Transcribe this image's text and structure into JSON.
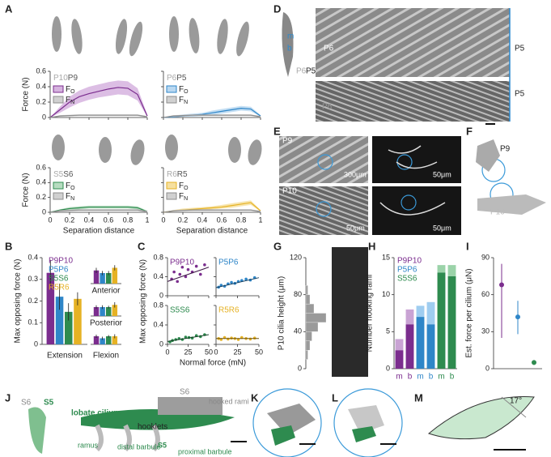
{
  "panel_labels": [
    "A",
    "B",
    "C",
    "D",
    "E",
    "F",
    "G",
    "H",
    "I",
    "J",
    "K",
    "L",
    "M"
  ],
  "figure_text": {
    "D": [
      "m",
      "b",
      "P6",
      "P5",
      "P6",
      "P5",
      "P5",
      "P6"
    ],
    "E": [
      "P9",
      "300μm",
      "50μm",
      "P10",
      "50μm",
      "50μm"
    ],
    "F": [
      "P9",
      "P10"
    ],
    "J": [
      "S6",
      "S5",
      "lobate cilium",
      "S6",
      "hooked rami",
      "hooklets",
      "ramus",
      "distal barbule",
      "S5",
      "proximal barbule"
    ],
    "M": [
      "17°"
    ]
  },
  "chart_data": [
    {
      "type": "line",
      "pair": [
        "P10",
        "P9"
      ],
      "ylabel": "Force (N)",
      "x": [
        0,
        0.1,
        0.2,
        0.3,
        0.4,
        0.5,
        0.6,
        0.7,
        0.8,
        0.9,
        1
      ],
      "series": [
        {
          "name": "F",
          "name_sub": "O",
          "color": "#7b2d8e",
          "band_color": "#d6b3df",
          "values": [
            0,
            0.1,
            0.2,
            0.27,
            0.31,
            0.34,
            0.37,
            0.39,
            0.38,
            0.3,
            0.02
          ],
          "lower": [
            0,
            0.06,
            0.13,
            0.19,
            0.23,
            0.26,
            0.28,
            0.3,
            0.29,
            0.22,
            0.01
          ],
          "upper": [
            0,
            0.14,
            0.27,
            0.35,
            0.4,
            0.43,
            0.46,
            0.48,
            0.47,
            0.38,
            0.04
          ]
        },
        {
          "name": "F",
          "name_sub": "N",
          "color": "#8c8c8c",
          "band_color": "#d0d0d0",
          "values": [
            0,
            0.02,
            0.025,
            0.03,
            0.03,
            0.03,
            0.03,
            0.03,
            0.03,
            0.03,
            0.01
          ],
          "lower": [
            0,
            0.01,
            0.015,
            0.02,
            0.02,
            0.02,
            0.02,
            0.02,
            0.02,
            0.02,
            0
          ],
          "upper": [
            0,
            0.03,
            0.035,
            0.04,
            0.04,
            0.04,
            0.04,
            0.04,
            0.04,
            0.04,
            0.02
          ]
        }
      ],
      "xlim": [
        0,
        1
      ],
      "xticks": [
        0,
        0.2,
        0.4,
        0.6,
        0.8,
        1
      ],
      "ylim": [
        0,
        0.6
      ],
      "yticks": [
        0,
        0.2,
        0.4,
        0.6
      ]
    },
    {
      "type": "line",
      "pair": [
        "P6",
        "P5"
      ],
      "x": [
        0,
        0.1,
        0.2,
        0.3,
        0.4,
        0.5,
        0.6,
        0.7,
        0.8,
        0.9,
        1
      ],
      "series": [
        {
          "name": "F",
          "name_sub": "O",
          "color": "#2f86c8",
          "band_color": "#b9d8f1",
          "values": [
            0,
            0.01,
            0.02,
            0.03,
            0.04,
            0.06,
            0.08,
            0.1,
            0.12,
            0.11,
            0.02
          ],
          "lower": [
            0,
            0,
            0.01,
            0.01,
            0.02,
            0.03,
            0.05,
            0.07,
            0.09,
            0.08,
            0.01
          ],
          "upper": [
            0,
            0.02,
            0.04,
            0.05,
            0.06,
            0.09,
            0.11,
            0.13,
            0.15,
            0.14,
            0.03
          ]
        },
        {
          "name": "F",
          "name_sub": "N",
          "color": "#8c8c8c",
          "band_color": "#d0d0d0",
          "values": [
            0,
            0.02,
            0.025,
            0.03,
            0.03,
            0.03,
            0.03,
            0.03,
            0.03,
            0.03,
            0.01
          ],
          "lower": [
            0,
            0.01,
            0.015,
            0.02,
            0.02,
            0.02,
            0.02,
            0.02,
            0.02,
            0.02,
            0
          ],
          "upper": [
            0,
            0.03,
            0.035,
            0.04,
            0.04,
            0.04,
            0.04,
            0.04,
            0.04,
            0.04,
            0.02
          ]
        }
      ],
      "xlim": [
        0,
        1
      ],
      "xticks": [
        0,
        0.2,
        0.4,
        0.6,
        0.8,
        1
      ],
      "ylim": [
        0,
        0.6
      ],
      "yticks": [
        0,
        0.2,
        0.4,
        0.6
      ]
    },
    {
      "type": "line",
      "pair": [
        "S5",
        "S6"
      ],
      "ylabel": "Force (N)",
      "xlabel": "Separation distance",
      "x": [
        0,
        0.1,
        0.2,
        0.3,
        0.4,
        0.5,
        0.6,
        0.7,
        0.8,
        0.9,
        1
      ],
      "series": [
        {
          "name": "F",
          "name_sub": "O",
          "color": "#2e8b4f",
          "band_color": "#b6dcc0",
          "values": [
            0,
            0.03,
            0.05,
            0.06,
            0.07,
            0.07,
            0.07,
            0.07,
            0.07,
            0.06,
            0.01
          ],
          "lower": [
            0,
            0.02,
            0.03,
            0.04,
            0.05,
            0.05,
            0.05,
            0.05,
            0.05,
            0.04,
            0
          ],
          "upper": [
            0,
            0.04,
            0.07,
            0.08,
            0.09,
            0.09,
            0.09,
            0.09,
            0.09,
            0.08,
            0.02
          ]
        },
        {
          "name": "F",
          "name_sub": "N",
          "color": "#8c8c8c",
          "band_color": "#d0d0d0",
          "values": [
            0,
            0.02,
            0.025,
            0.03,
            0.03,
            0.03,
            0.03,
            0.03,
            0.03,
            0.03,
            0.01
          ],
          "lower": [
            0,
            0.01,
            0.015,
            0.02,
            0.02,
            0.02,
            0.02,
            0.02,
            0.02,
            0.02,
            0
          ],
          "upper": [
            0,
            0.03,
            0.035,
            0.04,
            0.04,
            0.04,
            0.04,
            0.04,
            0.04,
            0.04,
            0.02
          ]
        }
      ],
      "xlim": [
        0,
        1
      ],
      "xticks": [
        0,
        0.2,
        0.4,
        0.6,
        0.8,
        1
      ],
      "ylim": [
        0,
        0.6
      ],
      "yticks": [
        0,
        0.2,
        0.4,
        0.6
      ]
    },
    {
      "type": "line",
      "pair": [
        "R6",
        "R5"
      ],
      "xlabel": "Separation distance",
      "x": [
        0,
        0.1,
        0.2,
        0.3,
        0.4,
        0.5,
        0.6,
        0.7,
        0.8,
        0.9,
        1
      ],
      "series": [
        {
          "name": "F",
          "name_sub": "O",
          "color": "#e6b224",
          "band_color": "#f6e0a0",
          "values": [
            0,
            0.02,
            0.03,
            0.04,
            0.05,
            0.06,
            0.07,
            0.09,
            0.11,
            0.13,
            0.02
          ],
          "lower": [
            0,
            0.01,
            0.02,
            0.02,
            0.03,
            0.04,
            0.05,
            0.06,
            0.08,
            0.1,
            0.01
          ],
          "upper": [
            0,
            0.03,
            0.05,
            0.06,
            0.07,
            0.08,
            0.1,
            0.12,
            0.14,
            0.16,
            0.03
          ]
        },
        {
          "name": "F",
          "name_sub": "N",
          "color": "#8c8c8c",
          "band_color": "#d0d0d0",
          "values": [
            0,
            0.02,
            0.025,
            0.03,
            0.03,
            0.03,
            0.03,
            0.03,
            0.03,
            0.03,
            0.01
          ],
          "lower": [
            0,
            0.01,
            0.015,
            0.02,
            0.02,
            0.02,
            0.02,
            0.02,
            0.02,
            0.02,
            0
          ],
          "upper": [
            0,
            0.03,
            0.035,
            0.04,
            0.04,
            0.04,
            0.04,
            0.04,
            0.04,
            0.04,
            0.02
          ]
        }
      ],
      "xlim": [
        0,
        1
      ],
      "xticks": [
        0,
        0.2,
        0.4,
        0.6,
        0.8,
        1
      ],
      "ylim": [
        0,
        0.6
      ],
      "yticks": [
        0,
        0.2,
        0.4,
        0.6
      ]
    },
    {
      "type": "bar",
      "ylabel": "Max opposing force (N)",
      "categories": [
        "Extension"
      ],
      "series": [
        {
          "name": "P9P10",
          "color": "#7b2d8e",
          "values": [
            0.33
          ],
          "errors": [
            0.06
          ]
        },
        {
          "name": "P5P6",
          "color": "#2f86c8",
          "values": [
            0.22
          ],
          "errors": [
            0.06
          ]
        },
        {
          "name": "S5S6",
          "color": "#2e8b4f",
          "values": [
            0.15
          ],
          "errors": [
            0.04
          ]
        },
        {
          "name": "R5R6",
          "color": "#e6b224",
          "values": [
            0.21
          ],
          "errors": [
            0.03
          ]
        }
      ],
      "ylim": [
        0,
        0.4
      ],
      "yticks": [
        0,
        0.1,
        0.2,
        0.3,
        0.4
      ]
    },
    {
      "type": "bar",
      "title": "Anterior",
      "series": [
        {
          "color": "#7b2d8e",
          "values": [
            0.025
          ],
          "errors": [
            0.005
          ]
        },
        {
          "color": "#2f86c8",
          "values": [
            0.02
          ],
          "errors": [
            0.004
          ]
        },
        {
          "color": "#2e8b4f",
          "values": [
            0.02
          ],
          "errors": [
            0.004
          ]
        },
        {
          "color": "#e6b224",
          "values": [
            0.03
          ],
          "errors": [
            0.005
          ]
        }
      ],
      "ylim": [
        0,
        0.04
      ]
    },
    {
      "type": "bar",
      "title": "Posterior",
      "series": [
        {
          "color": "#7b2d8e",
          "values": [
            0.02
          ],
          "errors": [
            0.004
          ]
        },
        {
          "color": "#2f86c8",
          "values": [
            0.02
          ],
          "errors": [
            0.004
          ]
        },
        {
          "color": "#2e8b4f",
          "values": [
            0.02
          ],
          "errors": [
            0.003
          ]
        },
        {
          "color": "#e6b224",
          "values": [
            0.025
          ],
          "errors": [
            0.006
          ]
        }
      ],
      "ylim": [
        0,
        0.04
      ]
    },
    {
      "type": "bar",
      "categories": [
        "Flexion"
      ],
      "series": [
        {
          "color": "#7b2d8e",
          "values": [
            0.02
          ],
          "errors": [
            0.004
          ]
        },
        {
          "color": "#2f86c8",
          "values": [
            0.015
          ],
          "errors": [
            0.004
          ]
        },
        {
          "color": "#2e8b4f",
          "values": [
            0.02
          ],
          "errors": [
            0.003
          ]
        },
        {
          "color": "#e6b224",
          "values": [
            0.02
          ],
          "errors": [
            0.005
          ]
        }
      ],
      "ylim": [
        0,
        0.04
      ]
    },
    {
      "type": "scatter",
      "title": "P9P10",
      "color": "#7b2d8e",
      "line_color": "#3b1444",
      "ylabel": "Max opposing force (N)",
      "x": [
        5,
        8,
        12,
        15,
        18,
        22,
        25,
        30,
        35,
        40,
        45
      ],
      "values": [
        0.35,
        0.5,
        0.3,
        0.45,
        0.6,
        0.4,
        0.55,
        0.5,
        0.62,
        0.45,
        0.65
      ],
      "trend_x": [
        0,
        50
      ],
      "trend_y": [
        0.3,
        0.6
      ],
      "xlim": [
        0,
        50
      ],
      "xticks": [
        0,
        25,
        50
      ],
      "ylim": [
        0,
        0.8
      ],
      "yticks": [
        0,
        0.4,
        0.8
      ]
    },
    {
      "type": "scatter",
      "title": "P5P6",
      "color": "#2f86c8",
      "line_color": "#163f5e",
      "x": [
        3,
        6,
        10,
        14,
        18,
        22,
        26,
        30,
        35,
        40,
        45
      ],
      "values": [
        0.18,
        0.22,
        0.2,
        0.25,
        0.28,
        0.26,
        0.3,
        0.32,
        0.35,
        0.33,
        0.38
      ],
      "trend_x": [
        0,
        50
      ],
      "trend_y": [
        0.17,
        0.38
      ],
      "xlim": [
        0,
        50
      ],
      "xticks": [
        0,
        25,
        50
      ],
      "ylim": [
        0,
        0.8
      ],
      "yticks": [
        0,
        0.4,
        0.8
      ]
    },
    {
      "type": "scatter",
      "title": "S5S6",
      "color": "#2e8b4f",
      "line_color": "#123d22",
      "xlabel": "Normal force (mN)",
      "x": [
        3,
        6,
        10,
        14,
        18,
        22,
        26,
        30,
        35,
        40,
        45
      ],
      "values": [
        0.05,
        0.08,
        0.1,
        0.12,
        0.1,
        0.15,
        0.14,
        0.13,
        0.18,
        0.16,
        0.2
      ],
      "trend_x": [
        0,
        50
      ],
      "trend_y": [
        0.06,
        0.2
      ],
      "xlim": [
        0,
        50
      ],
      "xticks": [
        0,
        25,
        50
      ],
      "ylim": [
        0,
        0.8
      ],
      "yticks": [
        0,
        0.4,
        0.8
      ]
    },
    {
      "type": "scatter",
      "title": "R5R6",
      "color": "#e6b224",
      "line_color": "#6b5210",
      "x": [
        3,
        6,
        10,
        14,
        18,
        22,
        26,
        30,
        35,
        40,
        45
      ],
      "values": [
        0.12,
        0.1,
        0.14,
        0.11,
        0.13,
        0.12,
        0.1,
        0.14,
        0.12,
        0.11,
        0.13
      ],
      "trend_x": [
        0,
        50
      ],
      "trend_y": [
        0.12,
        0.12
      ],
      "xlim": [
        0,
        50
      ],
      "xticks": [
        0,
        25,
        50
      ],
      "ylim": [
        0,
        0.8
      ],
      "yticks": [
        0,
        0.4,
        0.8
      ]
    },
    {
      "type": "histogram",
      "ylabel": "P10 cilia height (μm)",
      "color": "#9a9a9a",
      "bins": [
        0,
        10,
        20,
        30,
        40,
        50,
        60,
        70,
        80,
        90,
        100,
        110,
        120
      ],
      "counts": [
        0,
        1,
        2,
        3,
        6,
        10,
        4,
        2,
        1,
        0,
        0,
        0
      ],
      "xlim": [
        0,
        12
      ],
      "ylim": [
        0,
        120
      ],
      "yticks": [
        0,
        40,
        80,
        120
      ]
    },
    {
      "type": "stacked_bar",
      "ylabel": "Number hooking rami",
      "categories": [
        "m",
        "b",
        "m",
        "b",
        "m",
        "b"
      ],
      "series": [
        {
          "colors": [
            "#7b2d8e",
            "#7b2d8e",
            "#2f86c8",
            "#2f86c8",
            "#2e8b4f",
            "#2e8b4f"
          ],
          "values": [
            2.5,
            6,
            7,
            6,
            13,
            12.5
          ]
        },
        {
          "colors": [
            "#c9a3d4",
            "#c9a3d4",
            "#9fcdf0",
            "#9fcdf0",
            "#9bd3a9",
            "#9bd3a9"
          ],
          "values": [
            1.5,
            2,
            1.5,
            3,
            1,
            1.5
          ]
        }
      ],
      "legend": [
        {
          "name": "P9P10",
          "color": "#7b2d8e"
        },
        {
          "name": "P5P6",
          "color": "#2f86c8"
        },
        {
          "name": "S5S6",
          "color": "#2e8b4f"
        }
      ],
      "ylim": [
        0,
        15
      ],
      "yticks": [
        0,
        5,
        10,
        15
      ]
    },
    {
      "type": "errorpoint",
      "ylabel": "Est. force per cilium (μN)",
      "colors": [
        "#7b2d8e",
        "#2f86c8",
        "#2e8b4f"
      ],
      "values": [
        68,
        42,
        5
      ],
      "err_low": [
        25,
        28,
        3
      ],
      "err_high": [
        85,
        55,
        7
      ],
      "ylim": [
        0,
        90
      ],
      "yticks": [
        0,
        30,
        60,
        90
      ]
    }
  ]
}
